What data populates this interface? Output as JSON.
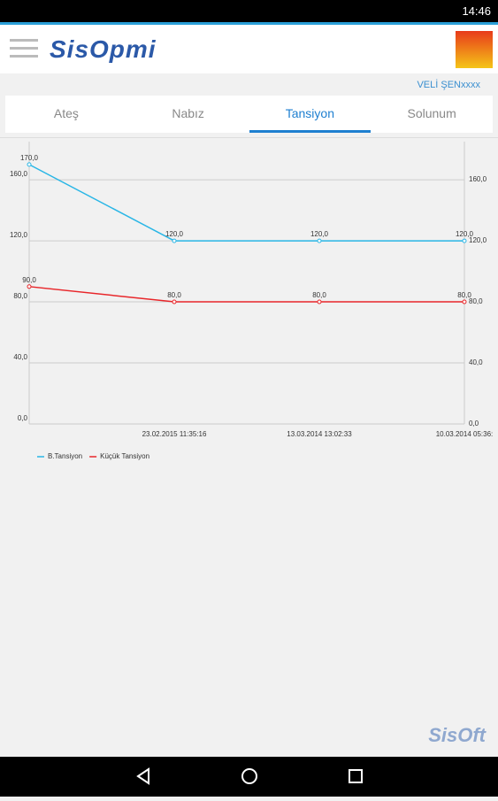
{
  "status_time": "14:46",
  "logo": "SisOpmi",
  "user": "VELİ ŞENxxxx",
  "tabs": [
    "Ateş",
    "Nabız",
    "Tansiyon",
    "Solunum"
  ],
  "active_tab": 2,
  "footer_logo": "SisOft",
  "chart_data": {
    "type": "line",
    "categories": [
      null,
      "23.02.2015 11:35:16",
      "13.03.2014 13:02:33",
      "10.03.2014 05:36:"
    ],
    "series": [
      {
        "name": "B.Tansiyon",
        "color": "#29b6e6",
        "values": [
          170,
          120,
          120,
          120
        ],
        "value_labels": [
          "170,0",
          "120,0",
          "120,0",
          "120,0"
        ]
      },
      {
        "name": "Küçük Tansiyon",
        "color": "#e8262a",
        "values": [
          90,
          80,
          80,
          80
        ],
        "value_labels": [
          "90,0",
          "80,0",
          "80,0",
          "80,0"
        ]
      }
    ],
    "ylim": [
      0,
      185
    ],
    "yticks": [
      {
        "value": 0,
        "label": "0,0"
      },
      {
        "value": 40,
        "label": "40,0"
      },
      {
        "value": 80,
        "label": "80,0"
      },
      {
        "value": 120,
        "label": "120,0"
      },
      {
        "value": 160,
        "label": "160,0"
      }
    ],
    "grid": true
  }
}
